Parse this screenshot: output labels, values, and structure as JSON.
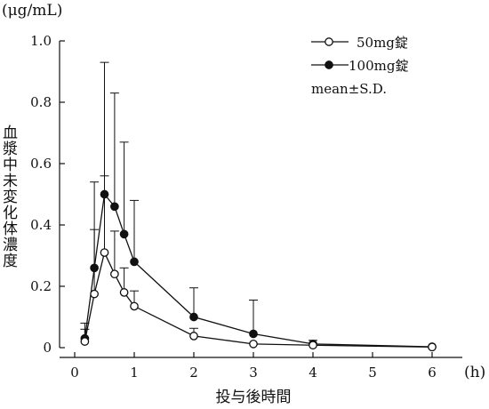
{
  "chart_data": {
    "type": "line",
    "title": "",
    "xlabel": "投与後時間",
    "x_unit": "(h)",
    "ylabel": "血漿中未変化体濃度",
    "y_unit": "(μg/mL)",
    "xlim": [
      0,
      6
    ],
    "ylim": [
      0,
      1.0
    ],
    "x_ticks": [
      0,
      1,
      2,
      3,
      4,
      5,
      6
    ],
    "x_tick_labels": [
      "0",
      "1",
      "2",
      "3",
      "4",
      "5",
      "6"
    ],
    "y_ticks": [
      0,
      0.2,
      0.4,
      0.6,
      0.8,
      1.0
    ],
    "y_tick_labels": [
      "0",
      "0.2",
      "0.4",
      "0.6",
      "0.8",
      "1.0"
    ],
    "grid": false,
    "legend_position": "top-right",
    "legend_note": "mean±S.D.",
    "series": [
      {
        "name": "50mg錠",
        "marker": "open-circle",
        "color": "#111111",
        "x": [
          0.17,
          0.33,
          0.5,
          0.67,
          0.83,
          1,
          2,
          3,
          4,
          6
        ],
        "y": [
          0.02,
          0.175,
          0.31,
          0.24,
          0.18,
          0.135,
          0.038,
          0.012,
          0.008,
          0.002
        ],
        "sd": [
          0.04,
          0.21,
          0.25,
          0.14,
          0.08,
          0.05,
          0.025,
          0.0,
          0.0,
          0.0
        ]
      },
      {
        "name": "100mg錠",
        "marker": "filled-circle",
        "color": "#111111",
        "x": [
          0.17,
          0.33,
          0.5,
          0.67,
          0.83,
          1,
          2,
          3,
          4,
          6
        ],
        "y": [
          0.03,
          0.26,
          0.5,
          0.46,
          0.37,
          0.28,
          0.1,
          0.045,
          0.012,
          0.003
        ],
        "sd": [
          0.05,
          0.28,
          0.43,
          0.37,
          0.3,
          0.2,
          0.095,
          0.11,
          0.012,
          0.0
        ]
      }
    ]
  }
}
